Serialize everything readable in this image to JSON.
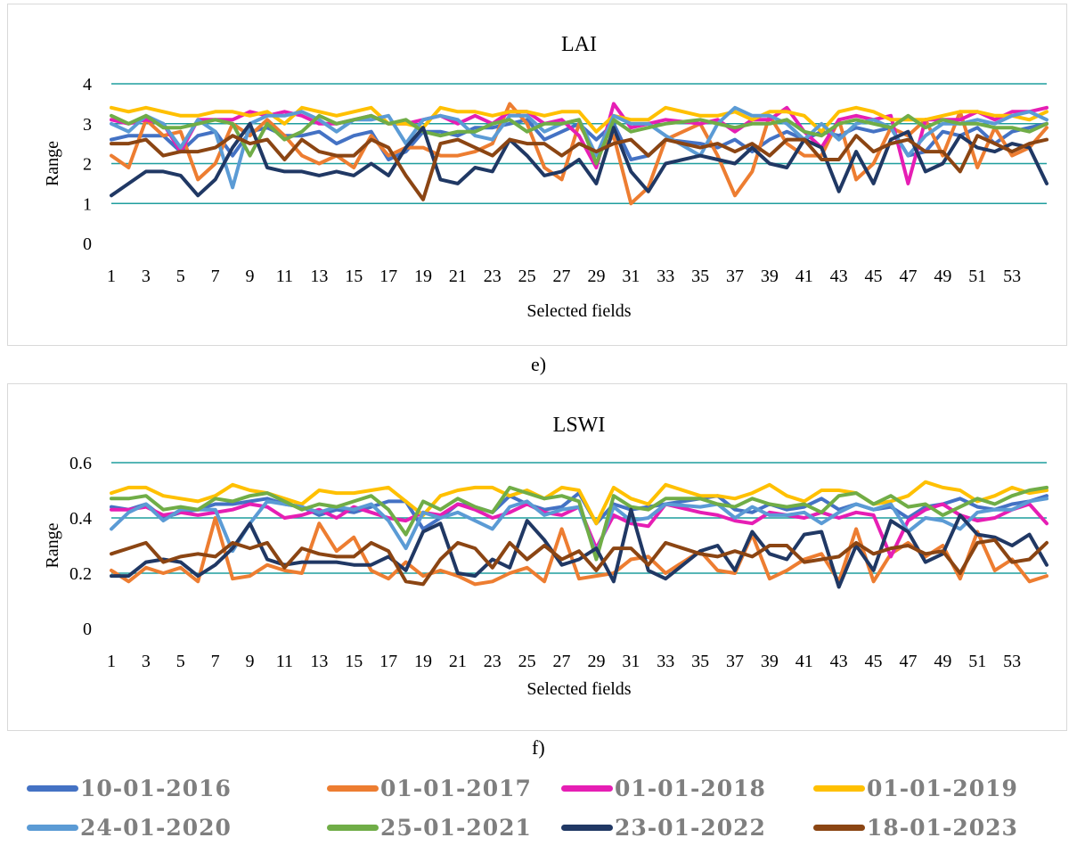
{
  "series_meta": [
    {
      "name": "10-01-2016",
      "color": "#4472C4"
    },
    {
      "name": "01-01-2017",
      "color": "#ED7D31"
    },
    {
      "name": "01-01-2018",
      "color": "#E61EB4"
    },
    {
      "name": "01-01-2019",
      "color": "#FFC000"
    },
    {
      "name": "24-01-2020",
      "color": "#5B9BD5"
    },
    {
      "name": "25-01-2021",
      "color": "#70AD47"
    },
    {
      "name": "23-01-2022",
      "color": "#203864"
    },
    {
      "name": "18-01-2023",
      "color": "#8B4513"
    }
  ],
  "captions": {
    "e": "e)",
    "f": "f)"
  },
  "chart_data": [
    {
      "type": "line",
      "title": "LAI",
      "xlabel": "Selected fields",
      "ylabel": "Range",
      "ylim": [
        0,
        4
      ],
      "yticks": [
        "0",
        "1",
        "2",
        "3",
        "4"
      ],
      "xtick_labels": [
        "1",
        "3",
        "5",
        "7",
        "9",
        "11",
        "13",
        "15",
        "17",
        "19",
        "21",
        "23",
        "25",
        "27",
        "29",
        "31",
        "33",
        "35",
        "37",
        "39",
        "41",
        "43",
        "45",
        "47",
        "49",
        "51",
        "53"
      ],
      "grid": true,
      "legend": "bottom",
      "x": [
        1,
        2,
        3,
        4,
        5,
        6,
        7,
        8,
        9,
        10,
        11,
        12,
        13,
        14,
        15,
        16,
        17,
        18,
        19,
        20,
        21,
        22,
        23,
        24,
        25,
        26,
        27,
        28,
        29,
        30,
        31,
        32,
        33,
        35,
        36,
        37,
        38,
        39,
        40,
        41,
        42,
        43,
        44,
        45,
        46,
        47,
        48,
        49,
        50,
        51,
        52,
        53,
        54,
        55
      ],
      "series": [
        {
          "name": "10-01-2016",
          "values": [
            2.6,
            2.7,
            2.7,
            2.7,
            2.3,
            2.7,
            2.8,
            2.2,
            2.8,
            2.9,
            2.7,
            2.7,
            2.8,
            2.5,
            2.7,
            2.8,
            2.1,
            2.3,
            2.8,
            2.8,
            2.7,
            2.9,
            2.9,
            3.0,
            3.1,
            2.6,
            2.8,
            3.0,
            2.6,
            3.0,
            2.1,
            2.2,
            2.6,
            2.5,
            2.4,
            2.6,
            2.3,
            2.6,
            2.8,
            2.6,
            2.8,
            2.7,
            2.9,
            2.8,
            2.9,
            2.2,
            2.3,
            2.8,
            2.7,
            2.9,
            2.5,
            2.8,
            2.9,
            3.0
          ]
        },
        {
          "name": "01-01-2017",
          "values": [
            2.2,
            1.9,
            3.1,
            2.7,
            2.8,
            1.6,
            2.0,
            3.0,
            2.7,
            3.1,
            2.7,
            2.2,
            2.0,
            2.2,
            1.9,
            2.7,
            2.2,
            2.4,
            2.4,
            2.2,
            2.2,
            2.3,
            2.5,
            3.5,
            3.0,
            1.9,
            1.6,
            3.0,
            2.2,
            2.7,
            1.0,
            1.4,
            2.6,
            3.0,
            2.2,
            1.2,
            1.8,
            3.2,
            2.5,
            2.2,
            2.2,
            3.1,
            1.6,
            2.0,
            2.9,
            2.7,
            3.1,
            2.2,
            3.3,
            1.9,
            2.9,
            2.2,
            2.4,
            2.9
          ]
        },
        {
          "name": "01-01-2018",
          "values": [
            3.1,
            3.0,
            3.1,
            3.0,
            2.3,
            3.1,
            3.1,
            3.1,
            3.3,
            3.2,
            3.3,
            3.2,
            3.0,
            3.0,
            3.1,
            3.2,
            3.0,
            3.0,
            3.1,
            3.2,
            3.0,
            3.2,
            3.0,
            3.3,
            3.3,
            3.0,
            3.1,
            2.7,
            1.9,
            3.5,
            2.9,
            3.0,
            3.1,
            3.0,
            3.1,
            2.8,
            3.1,
            3.1,
            3.4,
            2.8,
            2.4,
            3.1,
            3.2,
            3.1,
            3.2,
            1.5,
            3.1,
            3.1,
            3.1,
            3.3,
            3.1,
            3.3,
            3.3,
            3.4
          ]
        },
        {
          "name": "01-01-2019",
          "values": [
            3.4,
            3.3,
            3.4,
            3.3,
            3.2,
            3.2,
            3.3,
            3.3,
            3.2,
            3.3,
            3.0,
            3.4,
            3.3,
            3.2,
            3.3,
            3.4,
            3.0,
            3.0,
            2.9,
            3.4,
            3.3,
            3.3,
            3.2,
            3.3,
            3.3,
            3.2,
            3.3,
            3.3,
            2.8,
            3.2,
            3.1,
            3.1,
            3.4,
            3.2,
            3.2,
            3.3,
            3.1,
            3.3,
            3.3,
            3.2,
            2.8,
            3.3,
            3.4,
            3.3,
            3.1,
            3.1,
            3.1,
            3.2,
            3.3,
            3.3,
            3.2,
            3.2,
            3.1,
            3.3
          ]
        },
        {
          "name": "24-01-2020",
          "values": [
            3.0,
            2.8,
            3.2,
            3.0,
            2.4,
            3.1,
            2.8,
            1.4,
            3.0,
            3.2,
            3.2,
            3.3,
            3.1,
            2.8,
            3.1,
            3.1,
            3.2,
            2.5,
            3.1,
            3.2,
            3.1,
            2.7,
            2.6,
            3.2,
            3.2,
            2.8,
            3.0,
            3.1,
            2.2,
            3.2,
            3.0,
            3.0,
            2.7,
            2.2,
            3.0,
            3.4,
            3.2,
            3.2,
            3.0,
            2.6,
            3.0,
            2.6,
            3.0,
            3.1,
            2.9,
            2.2,
            2.7,
            3.0,
            3.0,
            3.1,
            3.0,
            3.2,
            3.3,
            3.1
          ]
        },
        {
          "name": "25-01-2021",
          "values": [
            3.2,
            3.0,
            3.2,
            2.9,
            2.9,
            3.0,
            3.1,
            3.0,
            2.2,
            3.0,
            2.6,
            2.8,
            3.2,
            3.0,
            3.1,
            3.2,
            3.0,
            3.1,
            2.8,
            2.7,
            2.8,
            2.8,
            3.0,
            3.1,
            2.8,
            3.0,
            3.0,
            3.1,
            2.0,
            3.1,
            2.8,
            2.9,
            3.0,
            3.1,
            3.0,
            2.9,
            3.0,
            3.0,
            3.1,
            2.8,
            2.7,
            3.0,
            3.1,
            3.0,
            2.9,
            3.2,
            2.9,
            3.1,
            3.0,
            3.0,
            2.9,
            2.9,
            2.8,
            3.0
          ]
        },
        {
          "name": "23-01-2022",
          "values": [
            1.2,
            1.5,
            1.8,
            1.8,
            1.7,
            1.2,
            1.6,
            2.4,
            3.0,
            1.9,
            1.8,
            1.8,
            1.7,
            1.8,
            1.7,
            2.0,
            1.7,
            2.4,
            2.9,
            1.6,
            1.5,
            1.9,
            1.8,
            2.6,
            2.2,
            1.7,
            1.8,
            2.1,
            1.5,
            2.9,
            1.8,
            1.3,
            2.0,
            2.2,
            2.1,
            2.0,
            2.4,
            2.0,
            1.9,
            2.6,
            2.4,
            1.3,
            2.3,
            1.5,
            2.6,
            2.8,
            1.8,
            2.0,
            2.7,
            2.4,
            2.3,
            2.5,
            2.4,
            1.5
          ]
        },
        {
          "name": "18-01-2023",
          "values": [
            2.5,
            2.5,
            2.6,
            2.2,
            2.3,
            2.3,
            2.4,
            2.7,
            2.5,
            2.6,
            2.1,
            2.6,
            2.3,
            2.2,
            2.2,
            2.6,
            2.4,
            1.7,
            1.1,
            2.5,
            2.6,
            2.4,
            2.2,
            2.6,
            2.5,
            2.5,
            2.2,
            2.5,
            2.3,
            2.5,
            2.6,
            2.2,
            2.6,
            2.4,
            2.5,
            2.3,
            2.5,
            2.2,
            2.6,
            2.6,
            2.1,
            2.1,
            2.7,
            2.3,
            2.5,
            2.6,
            2.3,
            2.3,
            1.8,
            2.7,
            2.5,
            2.3,
            2.5,
            2.6
          ]
        }
      ]
    },
    {
      "type": "line",
      "title": "LSWI",
      "xlabel": "Selected fields",
      "ylabel": "Range",
      "ylim": [
        0,
        0.6
      ],
      "yticks": [
        "0",
        "0.2",
        "0.4",
        "0.6"
      ],
      "xtick_labels": [
        "1",
        "3",
        "5",
        "7",
        "9",
        "11",
        "13",
        "15",
        "17",
        "19",
        "21",
        "23",
        "25",
        "27",
        "29",
        "31",
        "33",
        "35",
        "37",
        "39",
        "41",
        "43",
        "45",
        "47",
        "49",
        "51",
        "53"
      ],
      "grid": true,
      "legend": "bottom",
      "x": [
        1,
        2,
        3,
        4,
        5,
        6,
        7,
        8,
        9,
        10,
        11,
        12,
        13,
        14,
        15,
        16,
        17,
        18,
        19,
        20,
        21,
        22,
        23,
        24,
        25,
        26,
        27,
        28,
        29,
        30,
        31,
        32,
        33,
        35,
        36,
        37,
        38,
        39,
        40,
        41,
        42,
        43,
        44,
        45,
        46,
        47,
        48,
        49,
        50,
        51,
        52,
        53,
        54,
        55
      ],
      "series": [
        {
          "name": "10-01-2016",
          "values": [
            0.44,
            0.43,
            0.45,
            0.4,
            0.42,
            0.43,
            0.45,
            0.45,
            0.46,
            0.47,
            0.45,
            0.44,
            0.41,
            0.43,
            0.42,
            0.44,
            0.46,
            0.46,
            0.36,
            0.4,
            0.45,
            0.44,
            0.42,
            0.48,
            0.45,
            0.43,
            0.44,
            0.49,
            0.38,
            0.45,
            0.43,
            0.44,
            0.45,
            0.47,
            0.48,
            0.43,
            0.42,
            0.45,
            0.43,
            0.44,
            0.47,
            0.43,
            0.45,
            0.43,
            0.44,
            0.4,
            0.44,
            0.45,
            0.47,
            0.44,
            0.43,
            0.45,
            0.46,
            0.48
          ]
        },
        {
          "name": "01-01-2017",
          "values": [
            0.21,
            0.17,
            0.22,
            0.2,
            0.22,
            0.17,
            0.4,
            0.18,
            0.19,
            0.23,
            0.21,
            0.2,
            0.38,
            0.28,
            0.33,
            0.21,
            0.18,
            0.24,
            0.19,
            0.21,
            0.19,
            0.16,
            0.17,
            0.2,
            0.22,
            0.17,
            0.36,
            0.18,
            0.19,
            0.2,
            0.25,
            0.26,
            0.2,
            0.28,
            0.21,
            0.2,
            0.34,
            0.18,
            0.21,
            0.25,
            0.27,
            0.17,
            0.36,
            0.17,
            0.27,
            0.31,
            0.26,
            0.3,
            0.18,
            0.35,
            0.21,
            0.25,
            0.17,
            0.19
          ]
        },
        {
          "name": "01-01-2018",
          "values": [
            0.43,
            0.43,
            0.44,
            0.41,
            0.42,
            0.41,
            0.42,
            0.43,
            0.45,
            0.44,
            0.4,
            0.41,
            0.43,
            0.4,
            0.44,
            0.42,
            0.4,
            0.39,
            0.42,
            0.41,
            0.45,
            0.43,
            0.4,
            0.42,
            0.45,
            0.42,
            0.41,
            0.44,
            0.29,
            0.41,
            0.38,
            0.37,
            0.45,
            0.42,
            0.41,
            0.39,
            0.38,
            0.42,
            0.41,
            0.4,
            0.42,
            0.4,
            0.42,
            0.41,
            0.26,
            0.39,
            0.43,
            0.45,
            0.41,
            0.39,
            0.4,
            0.43,
            0.45,
            0.38
          ]
        },
        {
          "name": "01-01-2019",
          "values": [
            0.49,
            0.51,
            0.51,
            0.48,
            0.47,
            0.46,
            0.48,
            0.52,
            0.5,
            0.49,
            0.47,
            0.45,
            0.5,
            0.49,
            0.49,
            0.5,
            0.51,
            0.46,
            0.41,
            0.48,
            0.5,
            0.51,
            0.51,
            0.48,
            0.5,
            0.47,
            0.51,
            0.5,
            0.38,
            0.51,
            0.47,
            0.45,
            0.52,
            0.48,
            0.48,
            0.47,
            0.49,
            0.52,
            0.48,
            0.46,
            0.5,
            0.5,
            0.49,
            0.45,
            0.46,
            0.48,
            0.53,
            0.51,
            0.5,
            0.46,
            0.48,
            0.51,
            0.49,
            0.5
          ]
        },
        {
          "name": "24-01-2020",
          "values": [
            0.36,
            0.42,
            0.45,
            0.39,
            0.43,
            0.43,
            0.43,
            0.28,
            0.38,
            0.46,
            0.45,
            0.44,
            0.42,
            0.44,
            0.43,
            0.45,
            0.39,
            0.29,
            0.42,
            0.4,
            0.42,
            0.39,
            0.36,
            0.44,
            0.46,
            0.41,
            0.43,
            0.44,
            0.27,
            0.44,
            0.39,
            0.4,
            0.45,
            0.44,
            0.45,
            0.4,
            0.44,
            0.41,
            0.41,
            0.42,
            0.38,
            0.42,
            0.45,
            0.43,
            0.45,
            0.35,
            0.4,
            0.39,
            0.36,
            0.42,
            0.43,
            0.43,
            0.46,
            0.47
          ]
        },
        {
          "name": "25-01-2021",
          "values": [
            0.47,
            0.47,
            0.48,
            0.43,
            0.44,
            0.43,
            0.47,
            0.46,
            0.48,
            0.49,
            0.46,
            0.43,
            0.45,
            0.44,
            0.46,
            0.48,
            0.43,
            0.34,
            0.46,
            0.43,
            0.47,
            0.44,
            0.42,
            0.51,
            0.49,
            0.47,
            0.48,
            0.46,
            0.25,
            0.48,
            0.44,
            0.43,
            0.47,
            0.47,
            0.45,
            0.44,
            0.47,
            0.45,
            0.44,
            0.45,
            0.42,
            0.48,
            0.49,
            0.45,
            0.48,
            0.44,
            0.45,
            0.41,
            0.44,
            0.47,
            0.45,
            0.48,
            0.5,
            0.51
          ]
        },
        {
          "name": "23-01-2022",
          "values": [
            0.19,
            0.19,
            0.24,
            0.25,
            0.24,
            0.19,
            0.23,
            0.29,
            0.38,
            0.25,
            0.23,
            0.24,
            0.24,
            0.24,
            0.23,
            0.23,
            0.26,
            0.21,
            0.35,
            0.38,
            0.2,
            0.19,
            0.25,
            0.22,
            0.39,
            0.32,
            0.23,
            0.25,
            0.29,
            0.17,
            0.43,
            0.21,
            0.18,
            0.28,
            0.3,
            0.21,
            0.35,
            0.27,
            0.25,
            0.34,
            0.35,
            0.15,
            0.3,
            0.21,
            0.39,
            0.35,
            0.24,
            0.27,
            0.41,
            0.34,
            0.33,
            0.3,
            0.34,
            0.23
          ]
        },
        {
          "name": "18-01-2023",
          "values": [
            0.27,
            0.29,
            0.31,
            0.24,
            0.26,
            0.27,
            0.26,
            0.31,
            0.29,
            0.31,
            0.22,
            0.29,
            0.27,
            0.26,
            0.26,
            0.31,
            0.28,
            0.17,
            0.16,
            0.25,
            0.31,
            0.29,
            0.22,
            0.31,
            0.25,
            0.3,
            0.25,
            0.28,
            0.21,
            0.29,
            0.29,
            0.23,
            0.31,
            0.27,
            0.26,
            0.28,
            0.26,
            0.3,
            0.3,
            0.24,
            0.25,
            0.26,
            0.31,
            0.27,
            0.29,
            0.3,
            0.27,
            0.28,
            0.2,
            0.31,
            0.32,
            0.24,
            0.25,
            0.31
          ]
        }
      ]
    }
  ]
}
